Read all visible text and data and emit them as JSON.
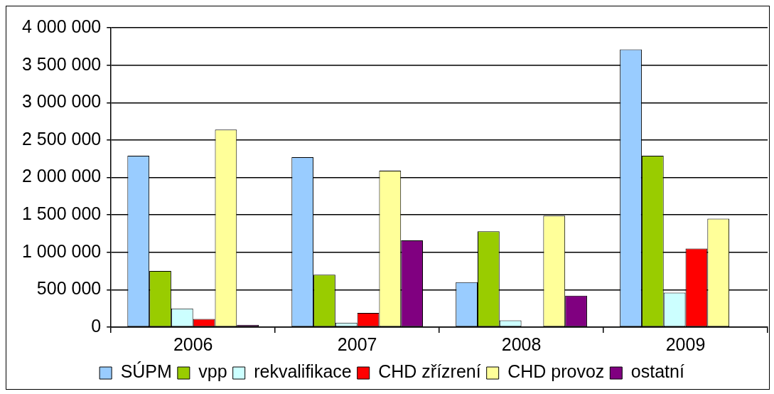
{
  "chart_data": {
    "type": "bar",
    "categories": [
      "2006",
      "2007",
      "2008",
      "2009"
    ],
    "series": [
      {
        "name": "SÚPM",
        "color": "#99ccff",
        "values": [
          2290000,
          2270000,
          600000,
          3710000
        ]
      },
      {
        "name": "vpp",
        "color": "#99cc00",
        "values": [
          750000,
          700000,
          1280000,
          2290000
        ]
      },
      {
        "name": "rekvalifikace",
        "color": "#ccffff",
        "values": [
          250000,
          60000,
          90000,
          460000
        ]
      },
      {
        "name": "CHD zřízrení",
        "color": "#ff0000",
        "values": [
          110000,
          190000,
          0,
          1050000
        ]
      },
      {
        "name": "CHD provoz",
        "color": "#ffff99",
        "values": [
          2640000,
          2090000,
          1490000,
          1450000
        ]
      },
      {
        "name": "ostatní",
        "color": "#800080",
        "values": [
          30000,
          1160000,
          420000,
          0
        ]
      }
    ],
    "ylim": [
      0,
      4000000
    ],
    "yticks": [
      {
        "value": 0,
        "label": "0"
      },
      {
        "value": 500000,
        "label": "500 000"
      },
      {
        "value": 1000000,
        "label": "1 000 000"
      },
      {
        "value": 1500000,
        "label": "1 500 000"
      },
      {
        "value": 2000000,
        "label": "2 000 000"
      },
      {
        "value": 2500000,
        "label": "2 500 000"
      },
      {
        "value": 3000000,
        "label": "3 000 000"
      },
      {
        "value": 3500000,
        "label": "3 500 000"
      },
      {
        "value": 4000000,
        "label": "4 000 000"
      }
    ],
    "grid": "y",
    "legend": "bottom"
  }
}
